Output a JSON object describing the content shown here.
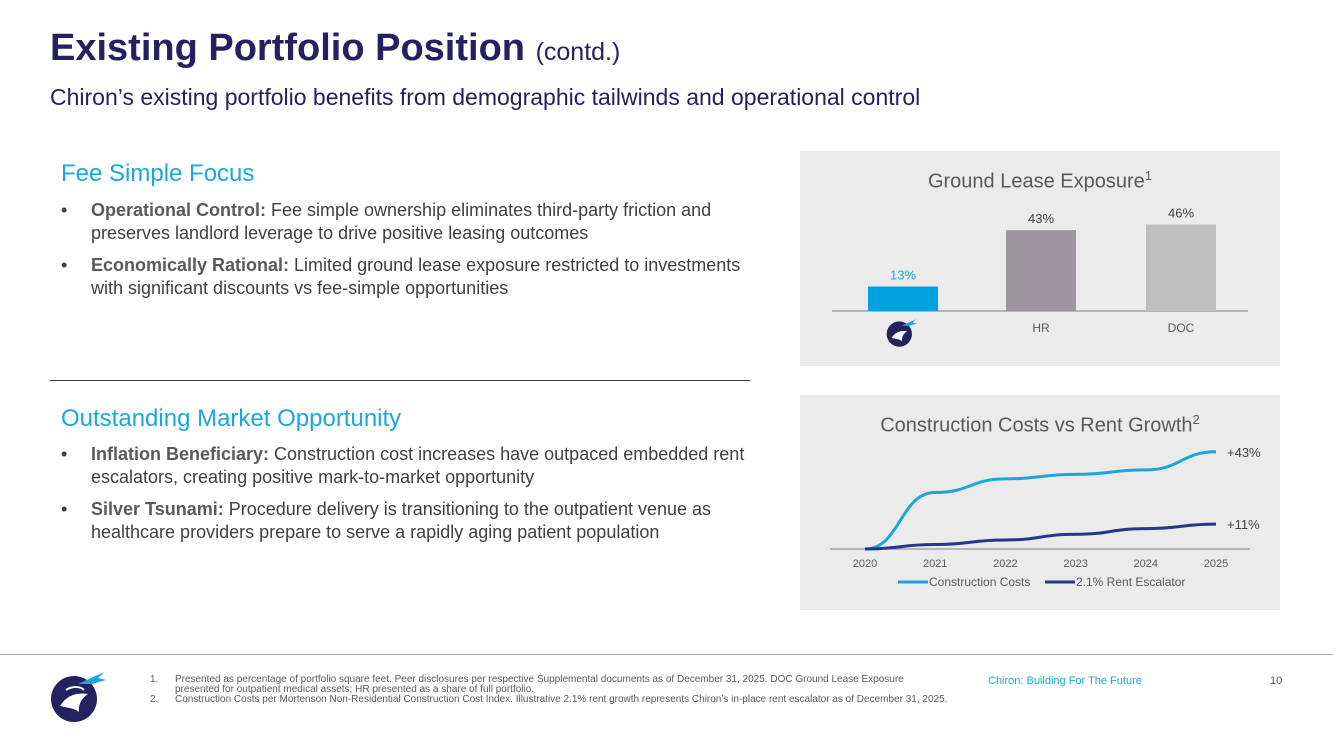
{
  "header": {
    "title": "Existing Portfolio Position",
    "title_suffix": "(contd.)",
    "subtitle": "Chiron’s existing portfolio benefits from demographic tailwinds and operational control"
  },
  "sections": [
    {
      "heading": "Fee Simple Focus",
      "bullets": [
        {
          "bullet": "•",
          "term": "Operational Control:",
          "text": " Fee simple ownership eliminates third-party friction and preserves landlord leverage to drive positive leasing outcomes"
        },
        {
          "bullet": "•",
          "term": "Economically Rational:",
          "text": " Limited ground lease exposure restricted to investments with significant discounts vs fee-simple opportunities"
        }
      ]
    },
    {
      "heading": "Outstanding Market Opportunity",
      "bullets": [
        {
          "bullet": "•",
          "term": "Inflation Beneficiary:",
          "text": " Construction cost increases have outpaced embedded rent escalators, creating positive mark-to-market opportunity"
        },
        {
          "bullet": "•",
          "term": "Silver Tsunami:",
          "text": " Procedure delivery is transitioning to the outpatient venue as healthcare providers prepare to serve a rapidly aging patient population"
        }
      ]
    }
  ],
  "chart_data": [
    {
      "type": "bar",
      "title": "Ground Lease Exposure",
      "title_sup": "1",
      "categories": [
        "Chiron logo",
        "HR",
        "DOC"
      ],
      "values": [
        13,
        43,
        46
      ],
      "labels": [
        "13%",
        "43%",
        "46%"
      ],
      "colors": [
        "#00a3e0",
        "#9e969f",
        "#bfbfbf"
      ],
      "label_colors": [
        "#1ba6dd",
        "#404040",
        "#404040"
      ],
      "category_icon": "chiron-logo-icon",
      "ylim": [
        0,
        50
      ],
      "grid": false
    },
    {
      "type": "line",
      "title": "Construction Costs vs Rent Growth",
      "title_sup": "2",
      "x": [
        "2020",
        "2021",
        "2022",
        "2023",
        "2024",
        "2025"
      ],
      "series": [
        {
          "name": "Construction Costs",
          "color": "#1ba6dd",
          "values": [
            0,
            25,
            31,
            33,
            35,
            43
          ],
          "end_label": "+43%"
        },
        {
          "name": "2.1% Rent Escalator",
          "color": "#25378a",
          "values": [
            0,
            2,
            4,
            6.5,
            9,
            11
          ],
          "end_label": "+11%"
        }
      ],
      "ylim": [
        0,
        50
      ],
      "legend": "bottom",
      "grid": false
    }
  ],
  "footer": {
    "footnotes": [
      {
        "num": "1.",
        "text": "Presented as percentage of portfolio square feet. Peer disclosures per respective Supplemental documents as of December 31, 2025. DOC Ground Lease Exposure presented for outpatient medical assets; HR presented as a share of full portfolio."
      },
      {
        "num": "2.",
        "text": "Construction Costs per Mortenson Non-Residential Construction Cost Index. Illustrative 2.1% rent growth represents Chiron’s in-place rent escalator as of December 31, 2025."
      }
    ],
    "brand_text": "Chiron: Building For The Future",
    "page_number": "10",
    "logo_icon": "chiron-logo-icon"
  },
  "colors": {
    "navy": "#25215f",
    "accent_blue": "#1ba6dd",
    "panel_bg": "#ebebeb"
  }
}
